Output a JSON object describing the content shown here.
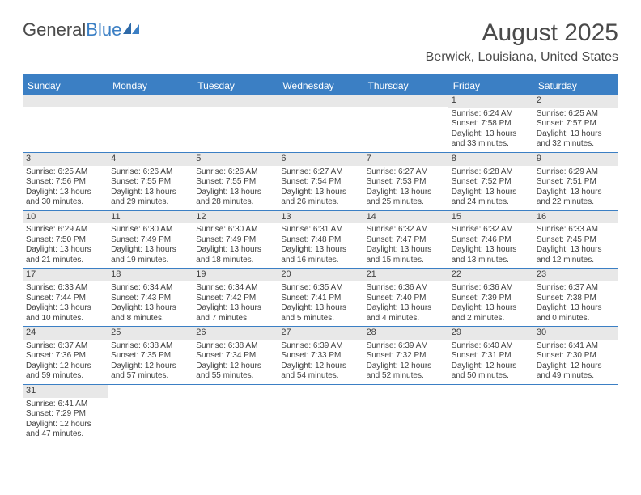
{
  "logo": {
    "text1": "General",
    "text2": "Blue"
  },
  "title": "August 2025",
  "location": "Berwick, Louisiana, United States",
  "colors": {
    "accent": "#3b7fc4",
    "daynum_bg": "#e8e8e8",
    "text": "#404040"
  },
  "weekdays": [
    "Sunday",
    "Monday",
    "Tuesday",
    "Wednesday",
    "Thursday",
    "Friday",
    "Saturday"
  ],
  "weeks": [
    [
      null,
      null,
      null,
      null,
      null,
      {
        "n": "1",
        "sr": "6:24 AM",
        "ss": "7:58 PM",
        "dl": "13 hours and 33 minutes."
      },
      {
        "n": "2",
        "sr": "6:25 AM",
        "ss": "7:57 PM",
        "dl": "13 hours and 32 minutes."
      }
    ],
    [
      {
        "n": "3",
        "sr": "6:25 AM",
        "ss": "7:56 PM",
        "dl": "13 hours and 30 minutes."
      },
      {
        "n": "4",
        "sr": "6:26 AM",
        "ss": "7:55 PM",
        "dl": "13 hours and 29 minutes."
      },
      {
        "n": "5",
        "sr": "6:26 AM",
        "ss": "7:55 PM",
        "dl": "13 hours and 28 minutes."
      },
      {
        "n": "6",
        "sr": "6:27 AM",
        "ss": "7:54 PM",
        "dl": "13 hours and 26 minutes."
      },
      {
        "n": "7",
        "sr": "6:27 AM",
        "ss": "7:53 PM",
        "dl": "13 hours and 25 minutes."
      },
      {
        "n": "8",
        "sr": "6:28 AM",
        "ss": "7:52 PM",
        "dl": "13 hours and 24 minutes."
      },
      {
        "n": "9",
        "sr": "6:29 AM",
        "ss": "7:51 PM",
        "dl": "13 hours and 22 minutes."
      }
    ],
    [
      {
        "n": "10",
        "sr": "6:29 AM",
        "ss": "7:50 PM",
        "dl": "13 hours and 21 minutes."
      },
      {
        "n": "11",
        "sr": "6:30 AM",
        "ss": "7:49 PM",
        "dl": "13 hours and 19 minutes."
      },
      {
        "n": "12",
        "sr": "6:30 AM",
        "ss": "7:49 PM",
        "dl": "13 hours and 18 minutes."
      },
      {
        "n": "13",
        "sr": "6:31 AM",
        "ss": "7:48 PM",
        "dl": "13 hours and 16 minutes."
      },
      {
        "n": "14",
        "sr": "6:32 AM",
        "ss": "7:47 PM",
        "dl": "13 hours and 15 minutes."
      },
      {
        "n": "15",
        "sr": "6:32 AM",
        "ss": "7:46 PM",
        "dl": "13 hours and 13 minutes."
      },
      {
        "n": "16",
        "sr": "6:33 AM",
        "ss": "7:45 PM",
        "dl": "13 hours and 12 minutes."
      }
    ],
    [
      {
        "n": "17",
        "sr": "6:33 AM",
        "ss": "7:44 PM",
        "dl": "13 hours and 10 minutes."
      },
      {
        "n": "18",
        "sr": "6:34 AM",
        "ss": "7:43 PM",
        "dl": "13 hours and 8 minutes."
      },
      {
        "n": "19",
        "sr": "6:34 AM",
        "ss": "7:42 PM",
        "dl": "13 hours and 7 minutes."
      },
      {
        "n": "20",
        "sr": "6:35 AM",
        "ss": "7:41 PM",
        "dl": "13 hours and 5 minutes."
      },
      {
        "n": "21",
        "sr": "6:36 AM",
        "ss": "7:40 PM",
        "dl": "13 hours and 4 minutes."
      },
      {
        "n": "22",
        "sr": "6:36 AM",
        "ss": "7:39 PM",
        "dl": "13 hours and 2 minutes."
      },
      {
        "n": "23",
        "sr": "6:37 AM",
        "ss": "7:38 PM",
        "dl": "13 hours and 0 minutes."
      }
    ],
    [
      {
        "n": "24",
        "sr": "6:37 AM",
        "ss": "7:36 PM",
        "dl": "12 hours and 59 minutes."
      },
      {
        "n": "25",
        "sr": "6:38 AM",
        "ss": "7:35 PM",
        "dl": "12 hours and 57 minutes."
      },
      {
        "n": "26",
        "sr": "6:38 AM",
        "ss": "7:34 PM",
        "dl": "12 hours and 55 minutes."
      },
      {
        "n": "27",
        "sr": "6:39 AM",
        "ss": "7:33 PM",
        "dl": "12 hours and 54 minutes."
      },
      {
        "n": "28",
        "sr": "6:39 AM",
        "ss": "7:32 PM",
        "dl": "12 hours and 52 minutes."
      },
      {
        "n": "29",
        "sr": "6:40 AM",
        "ss": "7:31 PM",
        "dl": "12 hours and 50 minutes."
      },
      {
        "n": "30",
        "sr": "6:41 AM",
        "ss": "7:30 PM",
        "dl": "12 hours and 49 minutes."
      }
    ],
    [
      {
        "n": "31",
        "sr": "6:41 AM",
        "ss": "7:29 PM",
        "dl": "12 hours and 47 minutes."
      },
      null,
      null,
      null,
      null,
      null,
      null
    ]
  ],
  "labels": {
    "sunrise": "Sunrise:",
    "sunset": "Sunset:",
    "daylight": "Daylight:"
  }
}
